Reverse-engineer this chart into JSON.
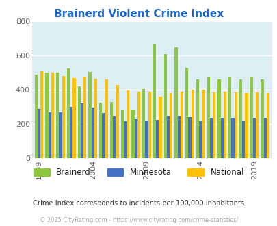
{
  "title": "Brainerd Violent Crime Index",
  "title_color": "#1a66cc",
  "subtitle": "Crime Index corresponds to incidents per 100,000 inhabitants",
  "footer": "© 2025 CityRating.com - https://www.cityrating.com/crime-statistics/",
  "years": [
    1999,
    2000,
    2001,
    2002,
    2003,
    2004,
    2005,
    2006,
    2007,
    2008,
    2009,
    2010,
    2011,
    2012,
    2013,
    2014,
    2015,
    2016,
    2017,
    2018,
    2019,
    2020
  ],
  "brainerd": [
    490,
    500,
    500,
    525,
    420,
    505,
    325,
    330,
    285,
    285,
    405,
    670,
    610,
    650,
    530,
    460,
    475,
    460,
    475,
    460,
    475,
    460
  ],
  "minnesota": [
    290,
    270,
    270,
    300,
    320,
    295,
    265,
    245,
    215,
    230,
    220,
    225,
    245,
    245,
    240,
    215,
    235,
    235,
    235,
    220,
    235,
    235
  ],
  "national": [
    510,
    500,
    480,
    470,
    475,
    465,
    460,
    430,
    395,
    390,
    390,
    360,
    380,
    390,
    400,
    400,
    385,
    390,
    385,
    380,
    385,
    380
  ],
  "bar_width": 0.27,
  "brainerd_color": "#8dc63f",
  "minnesota_color": "#4472c4",
  "national_color": "#ffc000",
  "bg_color": "#ddeef5",
  "ylim": [
    0,
    800
  ],
  "yticks": [
    0,
    200,
    400,
    600,
    800
  ],
  "xtick_years": [
    1999,
    2004,
    2009,
    2014,
    2019
  ]
}
